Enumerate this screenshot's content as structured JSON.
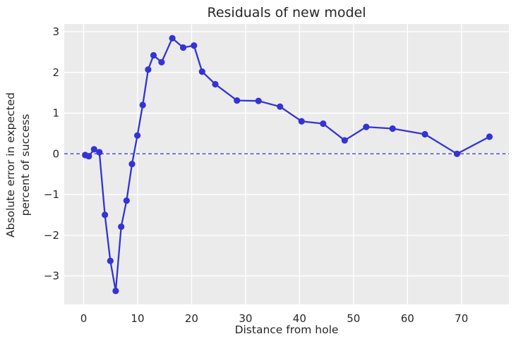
{
  "chart_data": {
    "type": "line",
    "title": "Residuals of new model",
    "xlabel": "Distance from hole",
    "ylabel_line1": "Absolute error in expected",
    "ylabel_line2": "percent of success",
    "series": [
      {
        "name": "residuals-of-new-model",
        "x": [
          0.28,
          0.97,
          1.93,
          2.92,
          3.93,
          4.94,
          5.94,
          6.95,
          7.95,
          8.95,
          9.95,
          10.95,
          11.95,
          12.95,
          14.43,
          16.43,
          18.44,
          20.44,
          21.95,
          24.39,
          28.4,
          32.39,
          36.39,
          40.37,
          44.38,
          48.37,
          52.36,
          57.25,
          63.23,
          69.18,
          75.19
        ],
        "y": [
          -0.03,
          -0.06,
          0.11,
          0.04,
          -1.5,
          -2.63,
          -3.37,
          -1.79,
          -1.15,
          -0.25,
          0.45,
          1.2,
          2.07,
          2.42,
          2.25,
          2.84,
          2.61,
          2.66,
          2.02,
          1.71,
          1.31,
          1.3,
          1.16,
          0.8,
          0.74,
          0.33,
          0.66,
          0.62,
          0.48,
          0.0,
          0.42
        ]
      }
    ],
    "reference_line": {
      "y": 0,
      "style": "dashed"
    },
    "xticks": [
      0,
      10,
      20,
      30,
      40,
      50,
      60,
      70
    ],
    "yticks": [
      -3,
      -2,
      -1,
      0,
      1,
      2,
      3
    ],
    "xlim": [
      -3.6,
      78.8
    ],
    "ylim": [
      -3.7,
      3.19
    ],
    "grid": true,
    "legend": false,
    "colors": {
      "line": "#3333d6",
      "marker": "#3333d6",
      "zero_line": "#3030dd",
      "plot_bg": "#ebebeb",
      "grid_line": "#ffffff",
      "text": "#262626"
    }
  }
}
